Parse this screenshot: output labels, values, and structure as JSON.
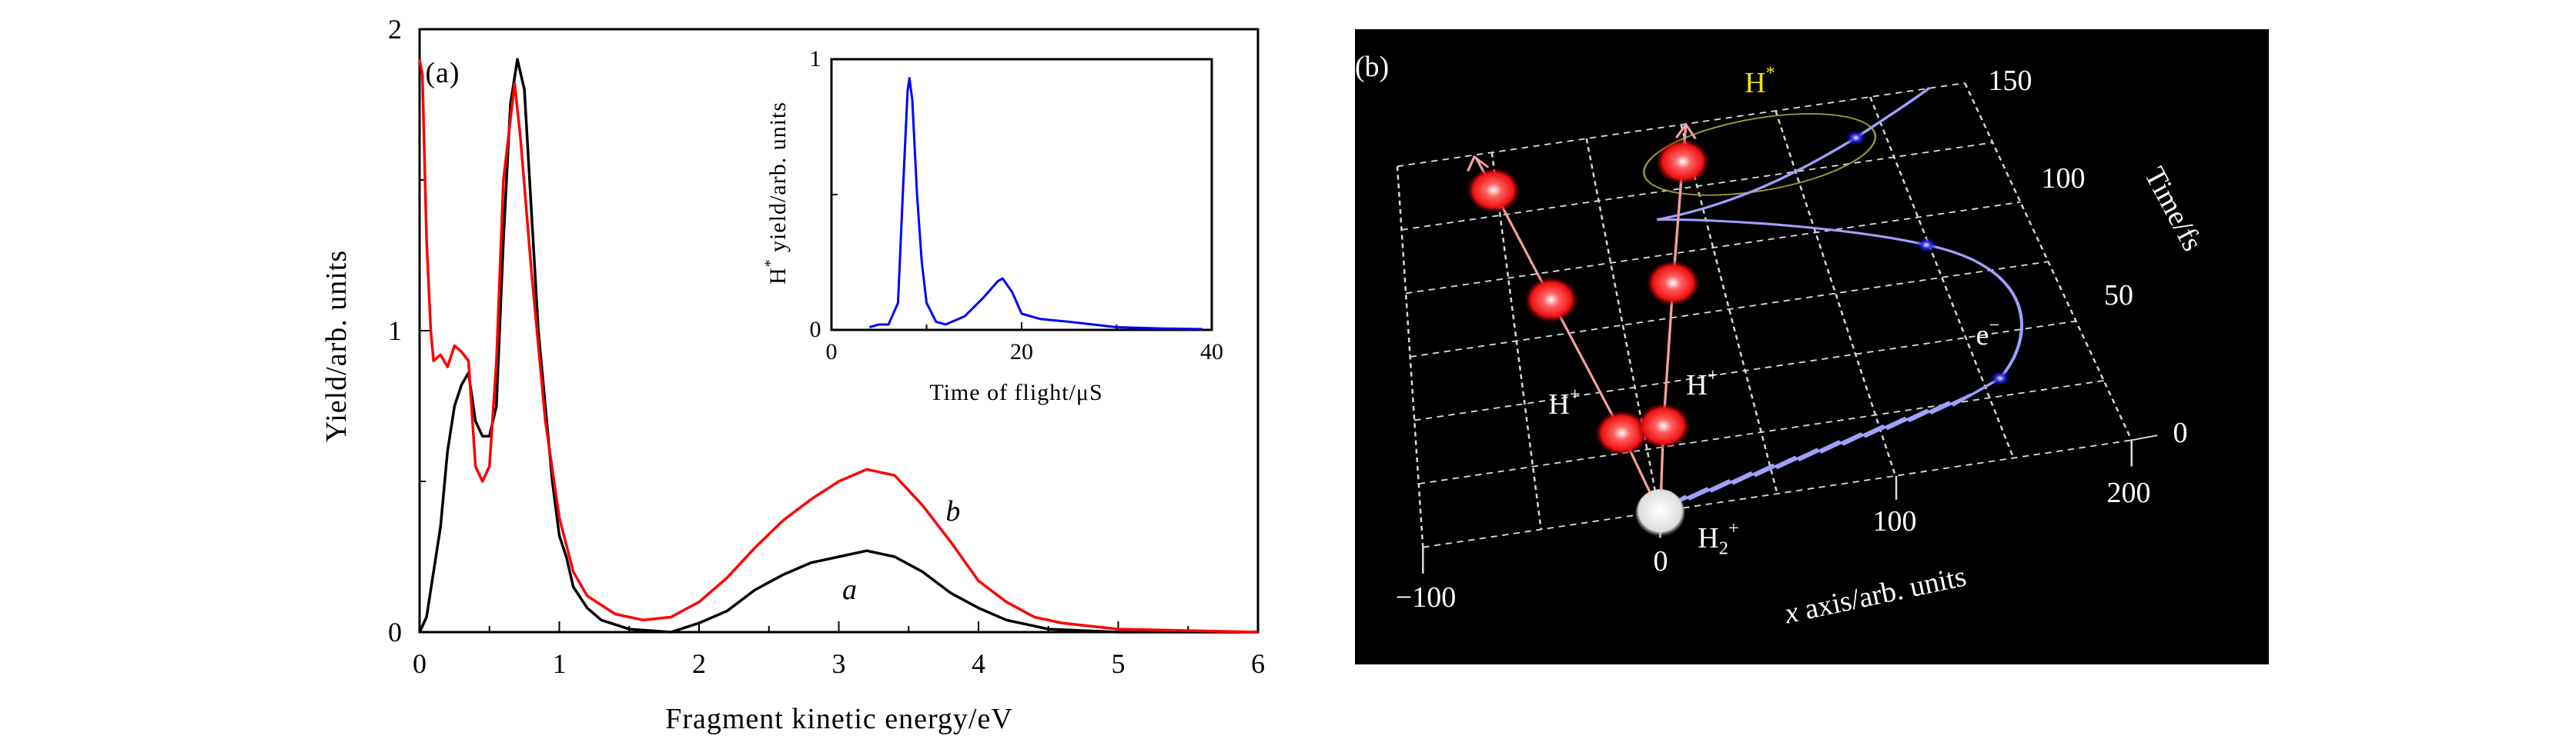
{
  "chart_data": [
    {
      "type": "line",
      "panel_label": "(a)",
      "xlabel": "Fragment kinetic energy/eV",
      "ylabel": "Yield/arb. units",
      "xlim": [
        0,
        6
      ],
      "ylim": [
        0,
        2
      ],
      "xticks": [
        "0",
        "1",
        "2",
        "3",
        "4",
        "5",
        "6"
      ],
      "yticks": [
        "0",
        "1",
        "2"
      ],
      "grid": false,
      "series": [
        {
          "name": "a",
          "color": "#000000",
          "x": [
            0,
            0.05,
            0.1,
            0.15,
            0.2,
            0.25,
            0.3,
            0.35,
            0.4,
            0.45,
            0.5,
            0.55,
            0.6,
            0.65,
            0.7,
            0.75,
            0.8,
            0.85,
            0.9,
            0.95,
            1.0,
            1.05,
            1.1,
            1.2,
            1.3,
            1.5,
            1.8,
            2.0,
            2.2,
            2.4,
            2.6,
            2.8,
            3.0,
            3.2,
            3.4,
            3.6,
            3.8,
            4.0,
            4.2,
            4.5,
            5.0,
            6.0
          ],
          "y": [
            0,
            0.05,
            0.2,
            0.35,
            0.6,
            0.75,
            0.82,
            0.86,
            0.7,
            0.65,
            0.65,
            0.75,
            1.3,
            1.75,
            1.9,
            1.8,
            1.4,
            1.0,
            0.75,
            0.5,
            0.32,
            0.25,
            0.15,
            0.08,
            0.04,
            0.01,
            0.0,
            0.03,
            0.07,
            0.14,
            0.19,
            0.23,
            0.25,
            0.27,
            0.25,
            0.2,
            0.13,
            0.08,
            0.04,
            0.01,
            0,
            0
          ]
        },
        {
          "name": "b",
          "color": "#ff0000",
          "x": [
            0,
            0.02,
            0.05,
            0.08,
            0.1,
            0.15,
            0.2,
            0.25,
            0.3,
            0.35,
            0.4,
            0.45,
            0.5,
            0.55,
            0.6,
            0.65,
            0.68,
            0.72,
            0.8,
            0.9,
            1.0,
            1.1,
            1.2,
            1.4,
            1.6,
            1.8,
            2.0,
            2.2,
            2.4,
            2.6,
            2.8,
            3.0,
            3.2,
            3.4,
            3.6,
            3.8,
            4.0,
            4.2,
            4.4,
            4.6,
            5.0,
            6.0
          ],
          "y": [
            1.9,
            1.85,
            1.3,
            1.0,
            0.9,
            0.92,
            0.88,
            0.95,
            0.93,
            0.9,
            0.55,
            0.5,
            0.55,
            0.9,
            1.5,
            1.7,
            1.82,
            1.65,
            1.2,
            0.7,
            0.38,
            0.2,
            0.12,
            0.06,
            0.04,
            0.05,
            0.1,
            0.18,
            0.28,
            0.37,
            0.44,
            0.5,
            0.54,
            0.52,
            0.42,
            0.3,
            0.17,
            0.1,
            0.05,
            0.03,
            0.01,
            0
          ]
        }
      ],
      "annotations": [
        {
          "text": "a",
          "x": 3.08,
          "y": 0.14
        },
        {
          "text": "b",
          "x": 3.82,
          "y": 0.4
        }
      ],
      "inset": {
        "type": "line",
        "xlabel": "Time of flight/μS",
        "ylabel": "H* yield/arb. units",
        "xlim": [
          0,
          40
        ],
        "ylim": [
          0,
          1
        ],
        "xticks": [
          "0",
          "20",
          "40"
        ],
        "yticks": [
          "0",
          "1"
        ],
        "series": [
          {
            "color": "#0000ff",
            "x": [
              4,
              5,
              6,
              7,
              7.5,
              8,
              8.2,
              8.5,
              9,
              9.5,
              10,
              11,
              12,
              14,
              16,
              17.5,
              18,
              19,
              20,
              22,
              25,
              30,
              35,
              39
            ],
            "y": [
              0.01,
              0.02,
              0.02,
              0.1,
              0.5,
              0.88,
              0.93,
              0.85,
              0.5,
              0.25,
              0.1,
              0.03,
              0.02,
              0.05,
              0.12,
              0.18,
              0.19,
              0.14,
              0.06,
              0.04,
              0.03,
              0.01,
              0.005,
              0.003
            ]
          }
        ]
      }
    }
  ],
  "panel_b": {
    "panel_label": "(b)",
    "background": "#000000",
    "h_star_label": "H*",
    "h_star_color": "#f0e000",
    "h_plus_labels": [
      "H+",
      "H+"
    ],
    "electron_label": "e−",
    "h2_plus_label": "H2+",
    "time_axis_label": "Time/fs",
    "time_ticks": [
      "150",
      "100",
      "50",
      "0"
    ],
    "x_axis_label": "x axis/arb. units",
    "x_ticks": [
      "−100",
      "0",
      "100",
      "200"
    ],
    "proton_color": "#ff2020",
    "electron_path_color": "#a0a0ff"
  }
}
